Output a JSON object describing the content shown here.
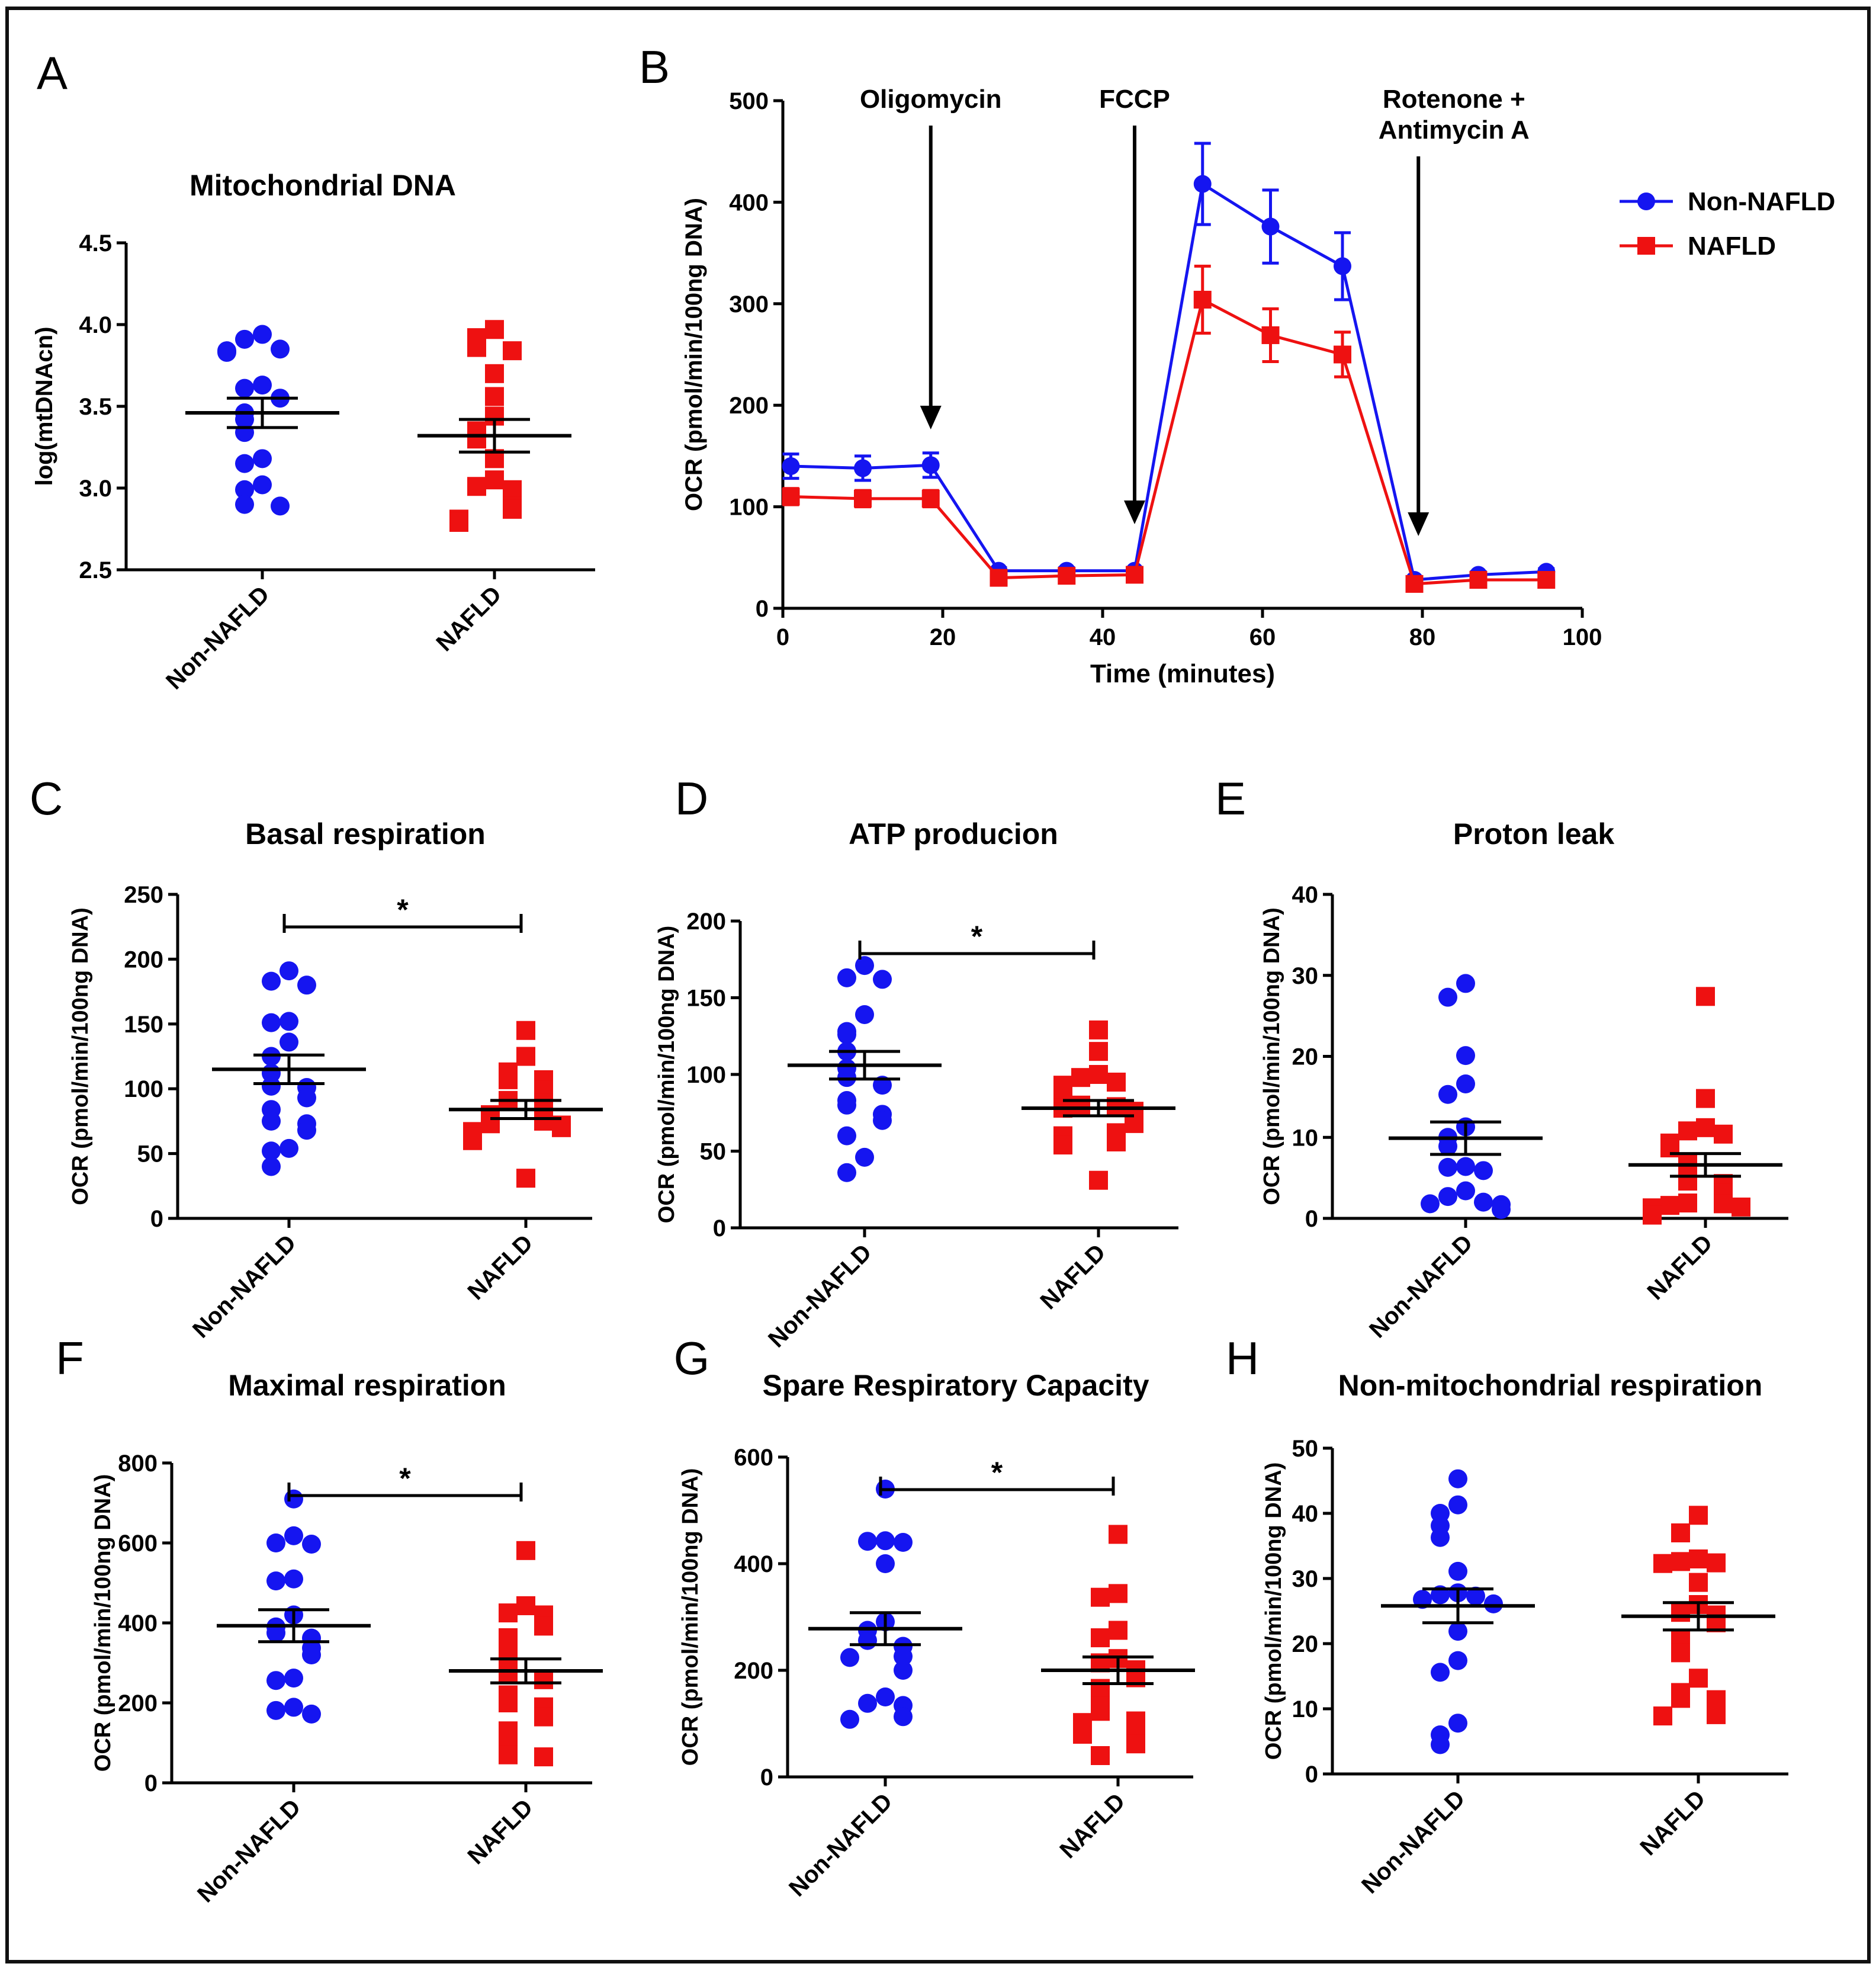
{
  "colors": {
    "non_nafld": "#1515f0",
    "nafld": "#ee1111"
  },
  "chart_data": [
    {
      "id": "A",
      "type": "scatter",
      "title": "Mitochondrial DNA",
      "ylabel": "log(mtDNAcn)",
      "ylim": [
        2.5,
        4.5
      ],
      "yticks": [
        "2.5",
        "3.0",
        "3.5",
        "4.0",
        "4.5"
      ],
      "categories": [
        "Non-NAFLD",
        "NAFLD"
      ],
      "groups": [
        {
          "name": "Non-NAFLD",
          "marker": "circle",
          "mean": 3.46,
          "sem": 0.09,
          "values": [
            3.94,
            3.91,
            3.85,
            3.84,
            3.83,
            3.63,
            3.61,
            3.55,
            3.46,
            3.42,
            3.34,
            3.18,
            3.15,
            3.02,
            2.99,
            2.9,
            2.89
          ]
        },
        {
          "name": "NAFLD",
          "marker": "square",
          "mean": 3.32,
          "sem": 0.1,
          "values": [
            3.97,
            3.92,
            3.86,
            3.84,
            3.7,
            3.56,
            3.44,
            3.35,
            3.3,
            3.18,
            3.05,
            3.01,
            2.99,
            2.91,
            2.89,
            2.87,
            2.81,
            2.79
          ]
        }
      ]
    },
    {
      "id": "B",
      "type": "line",
      "title": "",
      "xlabel": "Time (minutes)",
      "ylabel": "OCR (pmol/min/100ng DNA)",
      "xlim": [
        0,
        100
      ],
      "ylim": [
        0,
        500
      ],
      "xticks": [
        "0",
        "20",
        "40",
        "60",
        "80",
        "100"
      ],
      "yticks": [
        "0",
        "100",
        "200",
        "300",
        "400",
        "500"
      ],
      "x": [
        1,
        10,
        18.5,
        27,
        35.5,
        44,
        52.5,
        61,
        70,
        79,
        87,
        95.5
      ],
      "series": [
        {
          "name": "Non-NAFLD",
          "marker": "circle",
          "values": [
            140,
            138,
            141,
            37,
            37,
            37,
            418,
            376,
            337,
            28,
            33,
            36
          ],
          "errors": [
            12,
            12,
            12,
            3,
            3,
            3,
            40,
            36,
            33,
            3,
            3,
            3
          ]
        },
        {
          "name": "NAFLD",
          "marker": "square",
          "values": [
            110,
            108,
            108,
            30,
            32,
            33,
            304,
            269,
            250,
            24,
            28,
            28
          ],
          "errors": [
            8,
            8,
            8,
            3,
            3,
            3,
            33,
            26,
            22,
            3,
            3,
            3
          ]
        }
      ],
      "annotations": [
        {
          "x": 18.5,
          "lines": [
            "Oligomycin"
          ]
        },
        {
          "x": 44,
          "lines": [
            "FCCP"
          ]
        },
        {
          "x": 79.5,
          "lines": [
            "Rotenone +",
            "Antimycin A"
          ]
        }
      ],
      "legend_position": "top-right"
    },
    {
      "id": "C",
      "type": "scatter",
      "title": "Basal respiration",
      "ylabel": "OCR (pmol/min/100ng DNA)",
      "ylim": [
        0,
        250
      ],
      "yticks": [
        "0",
        "50",
        "100",
        "150",
        "200",
        "250"
      ],
      "categories": [
        "Non-NAFLD",
        "NAFLD"
      ],
      "significance": "*",
      "groups": [
        {
          "name": "Non-NAFLD",
          "marker": "circle",
          "mean": 115,
          "sem": 11,
          "values": [
            191,
            183,
            180,
            152,
            151,
            136,
            125,
            112,
            102,
            101,
            93,
            84,
            75,
            73,
            68,
            54,
            52,
            40
          ]
        },
        {
          "name": "NAFLD",
          "marker": "square",
          "mean": 84,
          "sem": 7,
          "values": [
            145,
            125,
            113,
            107,
            107,
            99,
            91,
            89,
            84,
            80,
            75,
            73,
            72,
            70,
            67,
            63,
            60,
            31
          ]
        }
      ]
    },
    {
      "id": "D",
      "type": "scatter",
      "title": "ATP producion",
      "ylabel": "OCR (pmol/min/100ng DNA)",
      "ylim": [
        0,
        200
      ],
      "yticks": [
        "0",
        "50",
        "100",
        "150",
        "200"
      ],
      "categories": [
        "Non-NAFLD",
        "NAFLD"
      ],
      "significance": "*",
      "groups": [
        {
          "name": "Non-NAFLD",
          "marker": "circle",
          "mean": 106,
          "sem": 9,
          "values": [
            171,
            163,
            162,
            139,
            128,
            126,
            115,
            104,
            98,
            93,
            83,
            80,
            74,
            70,
            60,
            46,
            36
          ]
        },
        {
          "name": "NAFLD",
          "marker": "square",
          "mean": 78,
          "sem": 5,
          "values": [
            129,
            115,
            100,
            98,
            95,
            93,
            87,
            80,
            79,
            78,
            76,
            70,
            68,
            62,
            60,
            56,
            54,
            31
          ]
        }
      ]
    },
    {
      "id": "E",
      "type": "scatter",
      "title": "Proton leak",
      "ylabel": "OCR (pmol/min/100ng DNA)",
      "ylim": [
        0,
        40
      ],
      "yticks": [
        "0",
        "10",
        "20",
        "30",
        "40"
      ],
      "categories": [
        "Non-NAFLD",
        "NAFLD"
      ],
      "groups": [
        {
          "name": "Non-NAFLD",
          "marker": "circle",
          "mean": 9.9,
          "sem": 2.0,
          "values": [
            29.0,
            27.3,
            20.1,
            16.6,
            15.3,
            11.3,
            10.0,
            8.9,
            6.4,
            6.3,
            5.9,
            3.4,
            2.7,
            2.0,
            1.8,
            1.7,
            1.1
          ]
        },
        {
          "name": "NAFLD",
          "marker": "square",
          "mean": 6.6,
          "sem": 1.4,
          "values": [
            27.4,
            14.8,
            11.2,
            10.8,
            10.4,
            9.3,
            8.7,
            6.9,
            5.6,
            4.6,
            4.3,
            3.1,
            1.9,
            1.8,
            1.6,
            1.4,
            1.3,
            0.4
          ]
        }
      ]
    },
    {
      "id": "F",
      "type": "scatter",
      "title": "Maximal respiration",
      "ylabel": "OCR (pmol/min/100ng DNA)",
      "ylim": [
        0,
        800
      ],
      "yticks": [
        "0",
        "200",
        "400",
        "600",
        "800"
      ],
      "categories": [
        "Non-NAFLD",
        "NAFLD"
      ],
      "significance": "*",
      "groups": [
        {
          "name": "Non-NAFLD",
          "marker": "circle",
          "mean": 393,
          "sem": 40,
          "values": [
            710,
            618,
            600,
            597,
            510,
            505,
            420,
            390,
            375,
            362,
            337,
            320,
            262,
            256,
            189,
            181,
            172
          ]
        },
        {
          "name": "NAFLD",
          "marker": "square",
          "mean": 280,
          "sem": 30,
          "values": [
            581,
            443,
            425,
            420,
            392,
            363,
            320,
            300,
            275,
            258,
            220,
            200,
            190,
            165,
            130,
            109,
            70,
            65
          ]
        }
      ]
    },
    {
      "id": "G",
      "type": "scatter",
      "title": "Spare Respiratory Capacity",
      "ylabel": "OCR (pmol/min/100ng DNA)",
      "ylim": [
        0,
        600
      ],
      "yticks": [
        "0",
        "200",
        "400",
        "600"
      ],
      "categories": [
        "Non-NAFLD",
        "NAFLD"
      ],
      "significance": "*",
      "groups": [
        {
          "name": "Non-NAFLD",
          "marker": "circle",
          "mean": 278,
          "sem": 30,
          "values": [
            540,
            443,
            442,
            440,
            400,
            291,
            275,
            256,
            245,
            226,
            224,
            200,
            150,
            138,
            134,
            113,
            108
          ]
        },
        {
          "name": "NAFLD",
          "marker": "square",
          "mean": 200,
          "sem": 25,
          "values": [
            455,
            344,
            337,
            275,
            261,
            222,
            214,
            201,
            186,
            166,
            133,
            123,
            105,
            102,
            87,
            80,
            62,
            40
          ]
        }
      ]
    },
    {
      "id": "H",
      "type": "scatter",
      "title": "Non-mitochondrial respiration",
      "ylabel": "OCR (pmol/min/100ng DNA)",
      "ylim": [
        0,
        50
      ],
      "yticks": [
        "0",
        "10",
        "20",
        "30",
        "40",
        "50"
      ],
      "categories": [
        "Non-NAFLD",
        "NAFLD"
      ],
      "groups": [
        {
          "name": "Non-NAFLD",
          "marker": "circle",
          "mean": 25.8,
          "sem": 2.6,
          "values": [
            45.3,
            41.3,
            40.0,
            38.1,
            36.3,
            31.1,
            27.8,
            27.5,
            27.3,
            26.8,
            26.1,
            21.9,
            17.4,
            15.6,
            7.8,
            6.0,
            4.5
          ]
        },
        {
          "name": "NAFLD",
          "marker": "square",
          "mean": 24.2,
          "sem": 2.1,
          "values": [
            39.7,
            37.0,
            33.0,
            32.6,
            32.4,
            32.3,
            29.4,
            26.0,
            24.8,
            24.4,
            23.2,
            20.8,
            18.6,
            14.7,
            12.5,
            11.6,
            11.4,
            9.1,
            8.9
          ]
        }
      ]
    }
  ]
}
